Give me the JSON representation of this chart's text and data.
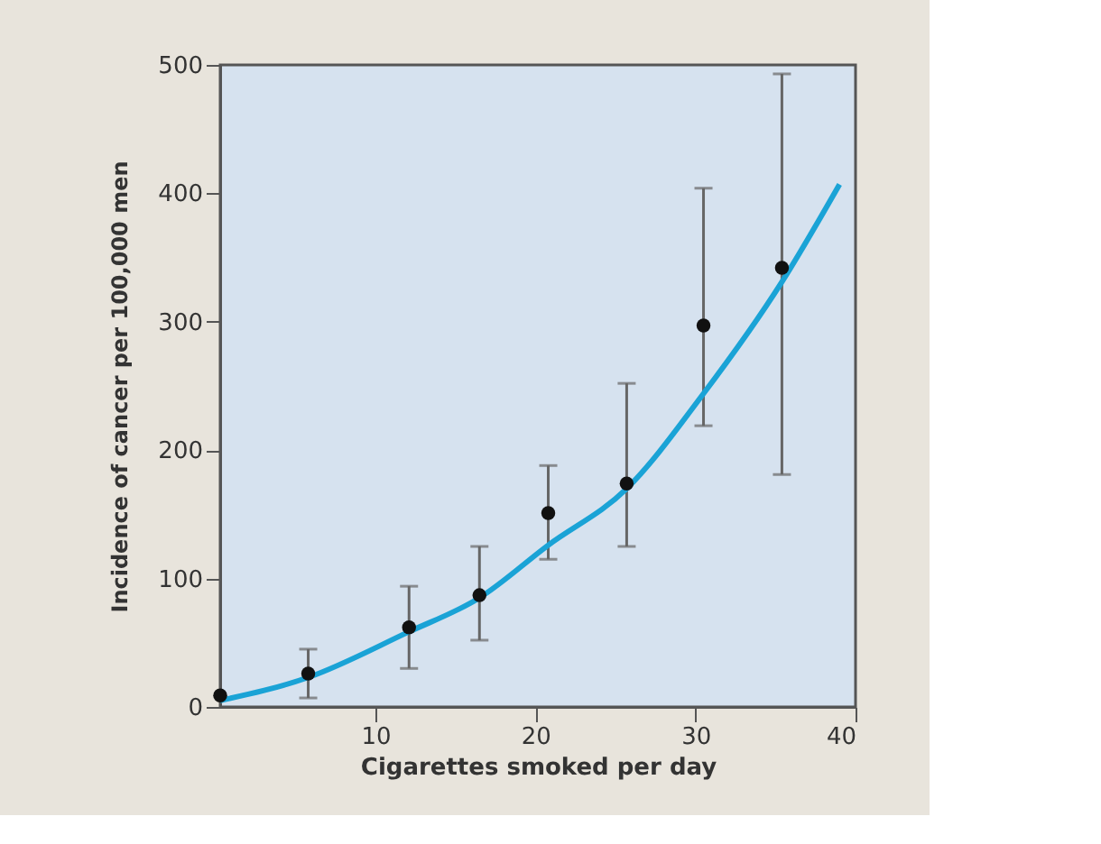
{
  "chart_data": {
    "type": "scatter",
    "xlabel": "Cigarettes smoked per day",
    "ylabel": "Incidence of cancer per 100,000 men",
    "xlim": [
      0.3,
      40
    ],
    "xticks": [
      10,
      20,
      30,
      40
    ],
    "ylim": [
      0,
      500
    ],
    "yticks": [
      0,
      100,
      200,
      300,
      400,
      500
    ],
    "grid": false,
    "series": [
      {
        "type": "scatter",
        "marker": "circle",
        "color": "#111111",
        "x": [
          0.3,
          5.8,
          12.1,
          16.5,
          20.8,
          25.7,
          30.5,
          35.4
        ],
        "values": [
          9,
          26,
          62,
          87,
          151,
          174,
          297,
          342
        ],
        "errors": [
          null,
          [
            7,
            45
          ],
          [
            30,
            94
          ],
          [
            52,
            125
          ],
          [
            115,
            188
          ],
          [
            125,
            252
          ],
          [
            219,
            404
          ],
          [
            181,
            493
          ]
        ]
      },
      {
        "type": "line",
        "marker": "none",
        "color": "#1aa3d6",
        "x": [
          0.3,
          5.8,
          12,
          16.5,
          20.8,
          25.7,
          30.5,
          35.4,
          39
        ],
        "values": [
          5,
          23,
          58,
          85,
          126,
          170,
          244,
          331,
          407
        ]
      }
    ]
  }
}
